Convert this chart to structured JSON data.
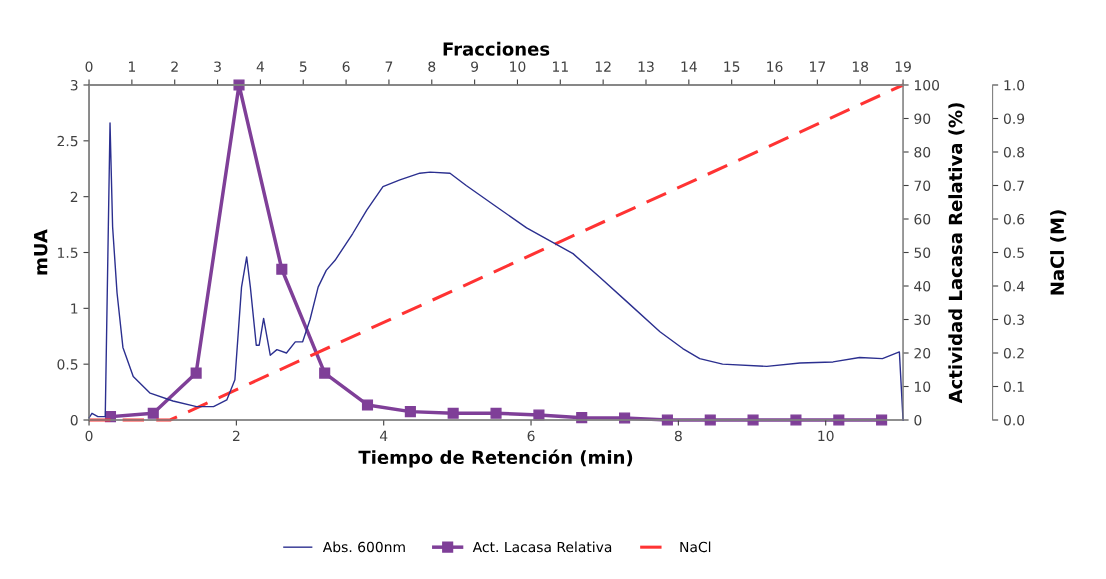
{
  "chart_data": {
    "type": "line",
    "xlabel": "Tiempo de Retención (min)",
    "x2label": "Fracciones",
    "ylabel": "mUA",
    "y2label": "Actividad Lacasa Relativa (%)",
    "y3label": "NaCl (M)",
    "xlim": [
      0,
      11.05
    ],
    "xticks": [
      0,
      2,
      4,
      6,
      8,
      10
    ],
    "x2lim": [
      0,
      19
    ],
    "x2ticks": [
      0,
      1,
      2,
      3,
      4,
      5,
      6,
      7,
      8,
      9,
      10,
      11,
      12,
      13,
      14,
      15,
      16,
      17,
      18,
      19
    ],
    "ylim": [
      0,
      3
    ],
    "yticks": [
      0,
      0.5,
      1,
      1.5,
      2,
      2.5,
      3
    ],
    "y2lim": [
      0,
      100
    ],
    "y2ticks": [
      0,
      10,
      20,
      30,
      40,
      50,
      60,
      70,
      80,
      90,
      100
    ],
    "y3lim": [
      0,
      1
    ],
    "y3ticks": [
      {
        "value": 0,
        "label": "0.0"
      },
      0.1,
      0.2,
      0.3,
      0.4,
      0.5,
      0.6,
      0.7,
      0.8,
      0.9,
      {
        "value": 1,
        "label": "1.0"
      }
    ],
    "grid": false,
    "legend": "bottom",
    "series": [
      {
        "name": "Abs. 600nm",
        "color": "#2b2f8f",
        "marker": "none",
        "line_style": "solid",
        "x": [
          0,
          0.04,
          0.12,
          0.22,
          0.285,
          0.32,
          0.38,
          0.46,
          0.6,
          0.83,
          1.14,
          1.46,
          1.69,
          1.87,
          1.98,
          2.07,
          2.14,
          2.19,
          2.27,
          2.31,
          2.37,
          2.46,
          2.55,
          2.68,
          2.8,
          2.9,
          3.0,
          3.11,
          3.22,
          3.34,
          3.58,
          3.77,
          3.99,
          4.22,
          4.49,
          4.63,
          4.9,
          5.12,
          5.53,
          5.94,
          6.16,
          6.57,
          6.93,
          7.3,
          7.75,
          8.06,
          8.29,
          8.6,
          9.2,
          9.65,
          10.1,
          10.46,
          10.77,
          11.0,
          11.05
        ],
        "values": [
          0.02,
          0.06,
          0.03,
          0.03,
          2.66,
          1.73,
          1.14,
          0.65,
          0.39,
          0.24,
          0.17,
          0.12,
          0.12,
          0.18,
          0.36,
          1.19,
          1.46,
          1.19,
          0.67,
          0.67,
          0.91,
          0.58,
          0.63,
          0.6,
          0.7,
          0.7,
          0.9,
          1.19,
          1.34,
          1.43,
          1.67,
          1.88,
          2.09,
          2.15,
          2.21,
          2.22,
          2.21,
          2.1,
          1.91,
          1.72,
          1.64,
          1.49,
          1.28,
          1.06,
          0.79,
          0.64,
          0.55,
          0.5,
          0.48,
          0.51,
          0.52,
          0.56,
          0.55,
          0.61,
          0
        ]
      },
      {
        "name": "Act. Lacasa Relativa",
        "color": "#7f3f98",
        "marker": "square",
        "line_style": "solid",
        "axis": "y2",
        "x": [
          0.291,
          0.872,
          1.454,
          2.036,
          2.617,
          3.199,
          3.78,
          4.362,
          4.943,
          5.525,
          6.107,
          6.688,
          7.27,
          7.851,
          8.433,
          9.014,
          9.596,
          10.178,
          10.759
        ],
        "values": [
          1,
          2,
          14,
          100,
          45,
          14,
          4.5,
          2.5,
          2,
          2,
          1.5,
          0.7,
          0.6,
          0,
          0,
          0,
          0,
          0,
          0
        ]
      },
      {
        "name": "NaCl",
        "color": "#ff3333",
        "marker": "none",
        "line_style": "dashed",
        "axis": "y3",
        "x": [
          0,
          1.1,
          11.05
        ],
        "values": [
          0,
          0,
          1
        ]
      }
    ]
  }
}
